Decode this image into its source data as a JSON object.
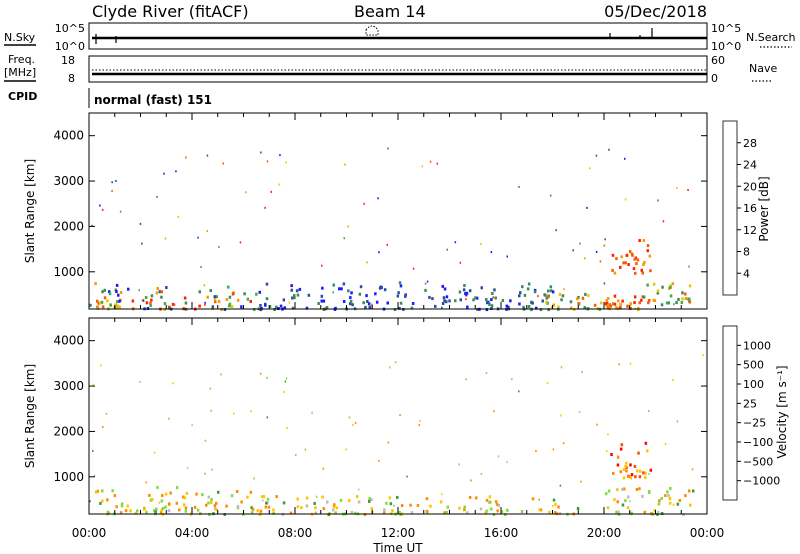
{
  "header": {
    "station": "Clyde River (fitACF)",
    "beam": "Beam 14",
    "date": "05/Dec/2018"
  },
  "panels": {
    "nsky": {
      "left_label": "N.Sky",
      "left_ticks": [
        "10^5",
        "10^0"
      ],
      "right_label": "N.Search",
      "right_ticks": [
        "10^5",
        "10^0"
      ]
    },
    "freq": {
      "left_label_1": "Freq.",
      "left_label_2": "[MHz]",
      "left_ticks": [
        "18",
        "8"
      ],
      "right_label": "Nave",
      "right_ticks": [
        "60",
        "0"
      ]
    },
    "cpid": {
      "label": "CPID",
      "value": "normal (fast) 151"
    }
  },
  "colors": {
    "power": [
      "#1a1aff",
      "#2a4fa0",
      "#3a8a5a",
      "#44aa44",
      "#e8c800",
      "#f0a000",
      "#f06000",
      "#ff2000"
    ],
    "velocity": [
      "#ff0000",
      "#ff4a00",
      "#ff8c00",
      "#ffc400",
      "#bcbcbc",
      "#7fdc3c",
      "#3c9a3c",
      "#2c6aa0",
      "#1a3aff"
    ]
  },
  "chart_data": [
    {
      "type": "heatmap",
      "name": "power",
      "xlabel": "",
      "ylabel": "Slant Range [km]",
      "x_ticks": [
        "00:00",
        "04:00",
        "08:00",
        "12:00",
        "16:00",
        "20:00",
        "00:00"
      ],
      "xlim_hours": [
        0,
        24
      ],
      "ylim": [
        180,
        4500
      ],
      "y_ticks": [
        1000,
        2000,
        3000,
        4000
      ],
      "colorbar": {
        "label": "Power [dB]",
        "ticks": [
          "4",
          "8",
          "12",
          "16",
          "20",
          "24",
          "28"
        ],
        "range": [
          0,
          30
        ]
      },
      "regions": [
        {
          "t0": 0.0,
          "t1": 1.2,
          "r0": 200,
          "r1": 900,
          "level": "mixed-low"
        },
        {
          "t0": 1.0,
          "t1": 6.5,
          "r0": 200,
          "r1": 700,
          "level": "mixed-low"
        },
        {
          "t0": 6.5,
          "t1": 18.0,
          "r0": 200,
          "r1": 800,
          "level": "low"
        },
        {
          "t0": 17.5,
          "t1": 20.0,
          "r0": 200,
          "r1": 600,
          "level": "mid"
        },
        {
          "t0": 20.0,
          "t1": 21.5,
          "r0": 200,
          "r1": 500,
          "level": "high"
        },
        {
          "t0": 20.2,
          "t1": 21.8,
          "r0": 1000,
          "r1": 1800,
          "level": "high"
        },
        {
          "t0": 21.5,
          "t1": 23.4,
          "r0": 300,
          "r1": 800,
          "level": "mid"
        }
      ]
    },
    {
      "type": "heatmap",
      "name": "velocity",
      "xlabel": "Time UT",
      "ylabel": "Slant Range [km]",
      "x_ticks": [
        "00:00",
        "04:00",
        "08:00",
        "12:00",
        "16:00",
        "20:00",
        "00:00"
      ],
      "xlim_hours": [
        0,
        24
      ],
      "ylim": [
        180,
        4500
      ],
      "y_ticks": [
        1000,
        2000,
        3000,
        4000
      ],
      "colorbar": {
        "label": "Velocity [m s⁻¹]",
        "ticks": [
          "1000",
          "500",
          "100",
          "25",
          "−25",
          "−100",
          "−500",
          "−1000"
        ]
      },
      "regions": [
        {
          "t0": 0.0,
          "t1": 6.5,
          "r0": 200,
          "r1": 800,
          "level": "mixed"
        },
        {
          "t0": 6.5,
          "t1": 19.0,
          "r0": 200,
          "r1": 600,
          "level": "mixed"
        },
        {
          "t0": 20.2,
          "t1": 21.8,
          "r0": 1000,
          "r1": 1800,
          "level": "negative"
        },
        {
          "t0": 20.0,
          "t1": 23.5,
          "r0": 200,
          "r1": 800,
          "level": "mixed"
        }
      ]
    }
  ]
}
